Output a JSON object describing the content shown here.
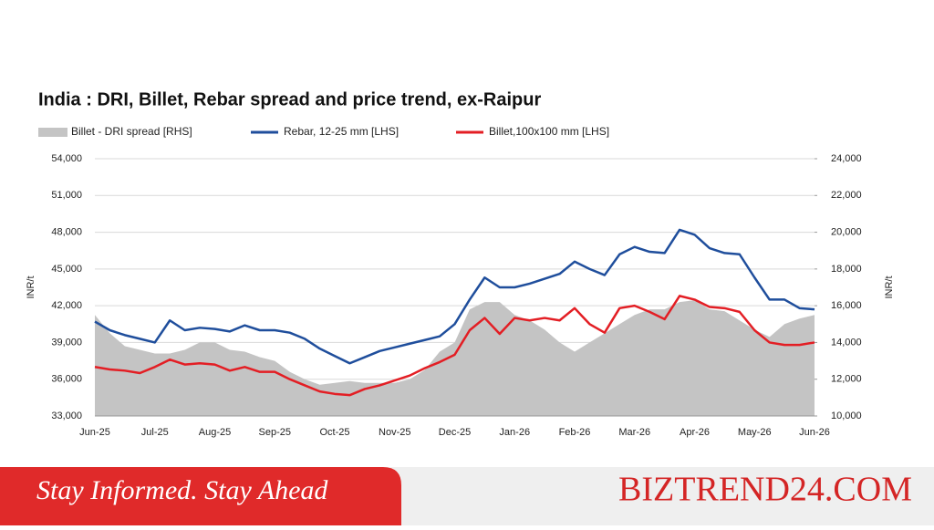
{
  "chart_data": {
    "type": "line",
    "title": "India : DRI, Billet, Rebar spread and price trend, ex-Raipur",
    "categories": [
      "Jun-25",
      null,
      null,
      null,
      "Jul-25",
      null,
      null,
      null,
      "Aug-25",
      null,
      null,
      null,
      "Sep-25",
      null,
      null,
      null,
      "Oct-25",
      null,
      null,
      null,
      "Nov-25",
      null,
      null,
      null,
      "Dec-25",
      null,
      null,
      null,
      "Jan-26",
      null,
      null,
      null,
      "Feb-26",
      null,
      null,
      null,
      "Mar-26",
      null,
      null,
      null,
      "Apr-26",
      null,
      null,
      null,
      "May-26",
      null,
      null,
      null,
      "Jun-26"
    ],
    "series": [
      {
        "name": "Billet - DRI spread  [RHS]",
        "color": "#c4c4c4",
        "axis": "y2",
        "kind": "area",
        "values": [
          15500,
          14500,
          13800,
          13600,
          13400,
          13400,
          13600,
          14000,
          14000,
          13600,
          13500,
          13200,
          13000,
          12400,
          12000,
          11700,
          11800,
          11900,
          11800,
          11800,
          11800,
          12000,
          12500,
          13500,
          14000,
          15800,
          16200,
          16200,
          15500,
          15200,
          14700,
          14000,
          13500,
          14000,
          14500,
          15000,
          15500,
          15800,
          15800,
          16200,
          16300,
          15800,
          15700,
          15200,
          14700,
          14300,
          15000,
          15300,
          15500
        ]
      },
      {
        "name": "Rebar, 12-25 mm [LHS]",
        "color": "#1f4e9c",
        "kind": "line",
        "values": [
          40700,
          40000,
          39600,
          39300,
          39000,
          40800,
          40000,
          40200,
          40100,
          39900,
          40400,
          40000,
          40000,
          39800,
          39300,
          38500,
          37900,
          37300,
          37800,
          38300,
          38600,
          38900,
          39200,
          39500,
          40500,
          42500,
          44300,
          43500,
          43500,
          43800,
          44200,
          44600,
          45600,
          45000,
          44500,
          46200,
          46800,
          46400,
          46300,
          48200,
          47800,
          46700,
          46300,
          46200,
          44300,
          42500,
          42500,
          41800,
          41700
        ]
      },
      {
        "name": "Billet,100x100 mm [LHS]",
        "color": "#e31e24",
        "kind": "line",
        "values": [
          37000,
          36800,
          36700,
          36500,
          37000,
          37600,
          37200,
          37300,
          37200,
          36700,
          37000,
          36600,
          36600,
          36000,
          35500,
          35000,
          34800,
          34700,
          35200,
          35500,
          35900,
          36300,
          36900,
          37400,
          38000,
          40000,
          41000,
          39700,
          41000,
          40800,
          41000,
          40800,
          41800,
          40500,
          39800,
          41800,
          42000,
          41500,
          40900,
          42800,
          42500,
          41900,
          41800,
          41500,
          40000,
          39000,
          38800,
          38800,
          39000
        ]
      }
    ],
    "ylabel": "INR/t",
    "y2label": "INR/t",
    "ylim": [
      33000,
      54000
    ],
    "yticks": [
      {
        "value": 33000,
        "label": "33,000"
      },
      {
        "value": 36000,
        "label": "36,000"
      },
      {
        "value": 39000,
        "label": "39,000"
      },
      {
        "value": 42000,
        "label": "42,000"
      },
      {
        "value": 45000,
        "label": "45,000"
      },
      {
        "value": 48000,
        "label": "48,000"
      },
      {
        "value": 51000,
        "label": "51,000"
      },
      {
        "value": 54000,
        "label": "54,000"
      }
    ],
    "y2lim": [
      10000,
      24000
    ],
    "y2ticks": [
      {
        "value": 10000,
        "label": "10,000"
      },
      {
        "value": 12000,
        "label": "12,000"
      },
      {
        "value": 14000,
        "label": "14,000"
      },
      {
        "value": 16000,
        "label": "16,000"
      },
      {
        "value": 18000,
        "label": "18,000"
      },
      {
        "value": 20000,
        "label": "20,000"
      },
      {
        "value": 22000,
        "label": "22,000"
      },
      {
        "value": 24000,
        "label": "24,000"
      }
    ],
    "grid": true,
    "legend": "top"
  },
  "footer": {
    "tagline": "Stay Informed. Stay Ahead",
    "brand": "BIZTREND24.COM"
  }
}
